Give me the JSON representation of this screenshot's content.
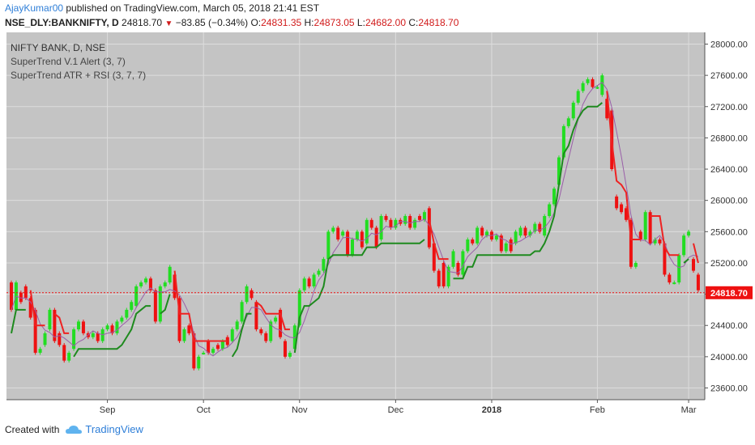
{
  "header": {
    "author": "AjayKumar00",
    "published": " published on TradingView.com, March 05, 2018 21:41 EST"
  },
  "ohlc": {
    "symbol": "NSE_DLY:BANKNIFTY, D",
    "last": "24818.70",
    "change": "−83.85 (−0.34%)",
    "o_label": "O:",
    "o": "24831.35",
    "h_label": "H:",
    "h": "24873.05",
    "l_label": "L:",
    "l": "24682.00",
    "c_label": "C:",
    "c": "24818.70"
  },
  "legend": {
    "line1": "NIFTY BANK, D, NSE",
    "line2": "SuperTrend V.1 Alert (3, 7)",
    "line3": "SuperTrend ATR + RSI (3, 7, 7)"
  },
  "price_label": "24818.70",
  "footer": {
    "created": "Created with",
    "brand": "TradingView"
  },
  "colors": {
    "background": "#c4c4c4",
    "up": "#22dd22",
    "down": "#ee1111",
    "supertrend_up": "#1e8a1e",
    "supertrend_down": "#ee2222",
    "rsi_line": "#9a5ea8",
    "price_line": "#ee1111",
    "grid": "#dddddd"
  },
  "chart_data": {
    "type": "candlestick",
    "yaxis_ticks": [
      23600,
      24000,
      24400,
      24800,
      25200,
      25600,
      26000,
      26400,
      26800,
      27200,
      27600,
      28000
    ],
    "yaxis_labels": [
      "23600.00",
      "24000.00",
      "24400.00",
      "24800.00",
      "25200.00",
      "25600.00",
      "26000.00",
      "26400.00",
      "26800.00",
      "27200.00",
      "27600.00",
      "28000.00"
    ],
    "ylim": [
      23450,
      28150
    ],
    "xaxis_labels": [
      {
        "label": "Sep",
        "bar": 20
      },
      {
        "label": "Oct",
        "bar": 40
      },
      {
        "label": "Nov",
        "bar": 60
      },
      {
        "label": "Dec",
        "bar": 80
      },
      {
        "label": "2018",
        "bar": 100
      },
      {
        "label": "Feb",
        "bar": 122
      },
      {
        "label": "Mar",
        "bar": 141
      }
    ],
    "bar_count": 143,
    "last_price": 24818.7,
    "candles": [
      {
        "o": 24950,
        "c": 24600
      },
      {
        "o": 24600,
        "c": 24950
      },
      {
        "o": 24820,
        "c": 24700
      },
      {
        "o": 24900,
        "c": 24750
      },
      {
        "o": 24750,
        "c": 24500
      },
      {
        "o": 24600,
        "c": 24050
      },
      {
        "o": 24050,
        "c": 24100
      },
      {
        "o": 24150,
        "c": 24300
      },
      {
        "o": 24350,
        "c": 24600
      },
      {
        "o": 24600,
        "c": 24200
      },
      {
        "o": 24300,
        "c": 24150
      },
      {
        "o": 24150,
        "c": 23950
      },
      {
        "o": 23950,
        "c": 24050
      },
      {
        "o": 24100,
        "c": 24350
      },
      {
        "o": 24350,
        "c": 24450
      },
      {
        "o": 24450,
        "c": 24300
      },
      {
        "o": 24300,
        "c": 24250
      },
      {
        "o": 24250,
        "c": 24300
      },
      {
        "o": 24300,
        "c": 24200
      },
      {
        "o": 24200,
        "c": 24350
      },
      {
        "o": 24350,
        "c": 24400
      },
      {
        "o": 24400,
        "c": 24300
      },
      {
        "o": 24300,
        "c": 24450
      },
      {
        "o": 24450,
        "c": 24500
      },
      {
        "o": 24500,
        "c": 24600
      },
      {
        "o": 24600,
        "c": 24700
      },
      {
        "o": 24650,
        "c": 24900
      },
      {
        "o": 24900,
        "c": 24950
      },
      {
        "o": 24950,
        "c": 25000
      },
      {
        "o": 25000,
        "c": 24850
      },
      {
        "o": 24850,
        "c": 24450
      },
      {
        "o": 24450,
        "c": 24900
      },
      {
        "o": 24900,
        "c": 24950
      },
      {
        "o": 24950,
        "c": 25150
      },
      {
        "o": 25050,
        "c": 24750
      },
      {
        "o": 24750,
        "c": 24200
      },
      {
        "o": 24200,
        "c": 24350
      },
      {
        "o": 24400,
        "c": 24300
      },
      {
        "o": 24300,
        "c": 23850
      },
      {
        "o": 23850,
        "c": 24000
      },
      {
        "o": 24050,
        "c": 24050
      },
      {
        "o": 24200,
        "c": 24050
      },
      {
        "o": 24050,
        "c": 24100
      },
      {
        "o": 24150,
        "c": 24100
      },
      {
        "o": 24100,
        "c": 24200
      },
      {
        "o": 24250,
        "c": 24150
      },
      {
        "o": 24200,
        "c": 24350
      },
      {
        "o": 24350,
        "c": 24450
      },
      {
        "o": 24450,
        "c": 24700
      },
      {
        "o": 24700,
        "c": 24900
      },
      {
        "o": 24850,
        "c": 24750
      },
      {
        "o": 24700,
        "c": 24350
      },
      {
        "o": 24350,
        "c": 24300
      },
      {
        "o": 24300,
        "c": 24200
      },
      {
        "o": 24200,
        "c": 24450
      },
      {
        "o": 24450,
        "c": 24500
      },
      {
        "o": 24600,
        "c": 24250
      },
      {
        "o": 24200,
        "c": 24000
      },
      {
        "o": 24000,
        "c": 24050
      },
      {
        "o": 24100,
        "c": 24400
      },
      {
        "o": 24400,
        "c": 24850
      },
      {
        "o": 24850,
        "c": 25000
      },
      {
        "o": 25000,
        "c": 24900
      },
      {
        "o": 24900,
        "c": 25050
      },
      {
        "o": 25050,
        "c": 25100
      },
      {
        "o": 25100,
        "c": 25250
      },
      {
        "o": 25250,
        "c": 25600
      },
      {
        "o": 25600,
        "c": 25650
      },
      {
        "o": 25650,
        "c": 25500
      },
      {
        "o": 25550,
        "c": 25600
      },
      {
        "o": 25600,
        "c": 25300
      },
      {
        "o": 25300,
        "c": 25500
      },
      {
        "o": 25500,
        "c": 25600
      },
      {
        "o": 25600,
        "c": 25400
      },
      {
        "o": 25450,
        "c": 25750
      },
      {
        "o": 25750,
        "c": 25650
      },
      {
        "o": 25650,
        "c": 25400
      },
      {
        "o": 25500,
        "c": 25800
      },
      {
        "o": 25800,
        "c": 25750
      },
      {
        "o": 25750,
        "c": 25650
      },
      {
        "o": 25650,
        "c": 25750
      },
      {
        "o": 25750,
        "c": 25700
      },
      {
        "o": 25700,
        "c": 25800
      },
      {
        "o": 25800,
        "c": 25650
      },
      {
        "o": 25650,
        "c": 25750
      },
      {
        "o": 25800,
        "c": 25750
      },
      {
        "o": 25750,
        "c": 25850
      },
      {
        "o": 25900,
        "c": 25400
      },
      {
        "o": 25450,
        "c": 25100
      },
      {
        "o": 25100,
        "c": 24900
      },
      {
        "o": 25200,
        "c": 24900
      },
      {
        "o": 24900,
        "c": 25150
      },
      {
        "o": 25150,
        "c": 25350
      },
      {
        "o": 25200,
        "c": 25050
      },
      {
        "o": 25050,
        "c": 25350
      },
      {
        "o": 25350,
        "c": 25500
      },
      {
        "o": 25500,
        "c": 25450
      },
      {
        "o": 25450,
        "c": 25650
      },
      {
        "o": 25650,
        "c": 25550
      },
      {
        "o": 25550,
        "c": 25600
      },
      {
        "o": 25600,
        "c": 25500
      },
      {
        "o": 25500,
        "c": 25550
      },
      {
        "o": 25550,
        "c": 25350
      },
      {
        "o": 25350,
        "c": 25450
      },
      {
        "o": 25500,
        "c": 25350
      },
      {
        "o": 25450,
        "c": 25600
      },
      {
        "o": 25550,
        "c": 25650
      },
      {
        "o": 25650,
        "c": 25550
      },
      {
        "o": 25550,
        "c": 25600
      },
      {
        "o": 25600,
        "c": 25700
      },
      {
        "o": 25700,
        "c": 25600
      },
      {
        "o": 25550,
        "c": 25800
      },
      {
        "o": 25800,
        "c": 25950
      },
      {
        "o": 25950,
        "c": 26150
      },
      {
        "o": 26200,
        "c": 26550
      },
      {
        "o": 26550,
        "c": 26950
      },
      {
        "o": 26950,
        "c": 27050
      },
      {
        "o": 27050,
        "c": 27250
      },
      {
        "o": 27250,
        "c": 27400
      },
      {
        "o": 27400,
        "c": 27500
      },
      {
        "o": 27500,
        "c": 27550
      },
      {
        "o": 27550,
        "c": 27450
      },
      {
        "o": 27450,
        "c": 27450
      },
      {
        "o": 27350,
        "c": 27600
      },
      {
        "o": 27300,
        "c": 27050
      },
      {
        "o": 27150,
        "c": 26400
      },
      {
        "o": 26050,
        "c": 25900
      },
      {
        "o": 25950,
        "c": 25850
      },
      {
        "o": 25900,
        "c": 25750
      },
      {
        "o": 25750,
        "c": 25150
      },
      {
        "o": 25150,
        "c": 25200
      },
      {
        "o": 25600,
        "c": 25500
      },
      {
        "o": 25500,
        "c": 25850
      },
      {
        "o": 25850,
        "c": 25450
      },
      {
        "o": 25450,
        "c": 25500
      },
      {
        "o": 25500,
        "c": 25450
      },
      {
        "o": 25450,
        "c": 25050
      },
      {
        "o": 25050,
        "c": 24950
      },
      {
        "o": 24950,
        "c": 24950
      },
      {
        "o": 24950,
        "c": 25300
      },
      {
        "o": 25300,
        "c": 25550
      },
      {
        "o": 25550,
        "c": 25600
      },
      {
        "o": 25250,
        "c": 25100
      },
      {
        "o": 25050,
        "c": 24850
      }
    ]
  }
}
